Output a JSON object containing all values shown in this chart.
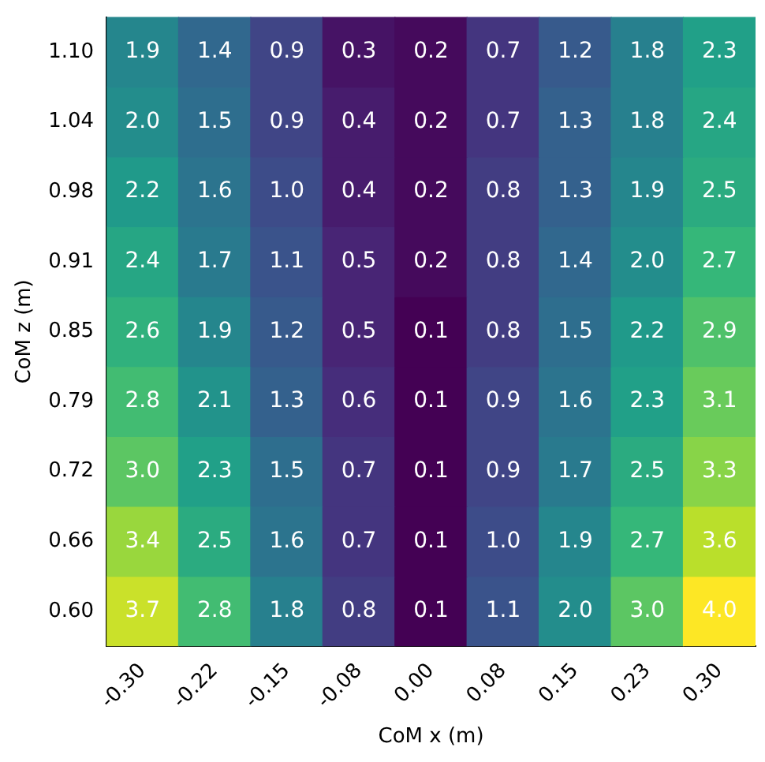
{
  "chart_data": {
    "type": "heatmap",
    "xlabel": "CoM x (m)",
    "ylabel": "CoM z (m)",
    "categories": [
      "-0.30",
      "-0.22",
      "-0.15",
      "-0.08",
      "0.00",
      "0.08",
      "0.15",
      "0.23",
      "0.30"
    ],
    "y_categories": [
      "1.10",
      "1.04",
      "0.98",
      "0.91",
      "0.85",
      "0.79",
      "0.72",
      "0.66",
      "0.60"
    ],
    "cells": [
      [
        1.9,
        1.4,
        0.9,
        0.3,
        0.2,
        0.7,
        1.2,
        1.8,
        2.3
      ],
      [
        2.0,
        1.5,
        0.9,
        0.4,
        0.2,
        0.7,
        1.3,
        1.8,
        2.4
      ],
      [
        2.2,
        1.6,
        1.0,
        0.4,
        0.2,
        0.8,
        1.3,
        1.9,
        2.5
      ],
      [
        2.4,
        1.7,
        1.1,
        0.5,
        0.2,
        0.8,
        1.4,
        2.0,
        2.7
      ],
      [
        2.6,
        1.9,
        1.2,
        0.5,
        0.1,
        0.8,
        1.5,
        2.2,
        2.9
      ],
      [
        2.8,
        2.1,
        1.3,
        0.6,
        0.1,
        0.9,
        1.6,
        2.3,
        3.1
      ],
      [
        3.0,
        2.3,
        1.5,
        0.7,
        0.1,
        0.9,
        1.7,
        2.5,
        3.3
      ],
      [
        3.4,
        2.5,
        1.6,
        0.7,
        0.1,
        1.0,
        1.9,
        2.7,
        3.6
      ],
      [
        3.7,
        2.8,
        1.8,
        0.8,
        0.1,
        1.1,
        2.0,
        3.0,
        4.0
      ]
    ],
    "cell_labels": [
      [
        "1.9",
        "1.4",
        "0.9",
        "0.3",
        "0.2",
        "0.7",
        "1.2",
        "1.8",
        "2.3"
      ],
      [
        "2.0",
        "1.5",
        "0.9",
        "0.4",
        "0.2",
        "0.7",
        "1.3",
        "1.8",
        "2.4"
      ],
      [
        "2.2",
        "1.6",
        "1.0",
        "0.4",
        "0.2",
        "0.8",
        "1.3",
        "1.9",
        "2.5"
      ],
      [
        "2.4",
        "1.7",
        "1.1",
        "0.5",
        "0.2",
        "0.8",
        "1.4",
        "2.0",
        "2.7"
      ],
      [
        "2.6",
        "1.9",
        "1.2",
        "0.5",
        "0.1",
        "0.8",
        "1.5",
        "2.2",
        "2.9"
      ],
      [
        "2.8",
        "2.1",
        "1.3",
        "0.6",
        "0.1",
        "0.9",
        "1.6",
        "2.3",
        "3.1"
      ],
      [
        "3.0",
        "2.3",
        "1.5",
        "0.7",
        "0.1",
        "0.9",
        "1.7",
        "2.5",
        "3.3"
      ],
      [
        "3.4",
        "2.5",
        "1.6",
        "0.7",
        "0.1",
        "1.0",
        "1.9",
        "2.7",
        "3.6"
      ],
      [
        "3.7",
        "2.8",
        "1.8",
        "0.8",
        "0.1",
        "1.1",
        "2.0",
        "3.0",
        "4.0"
      ]
    ]
  }
}
